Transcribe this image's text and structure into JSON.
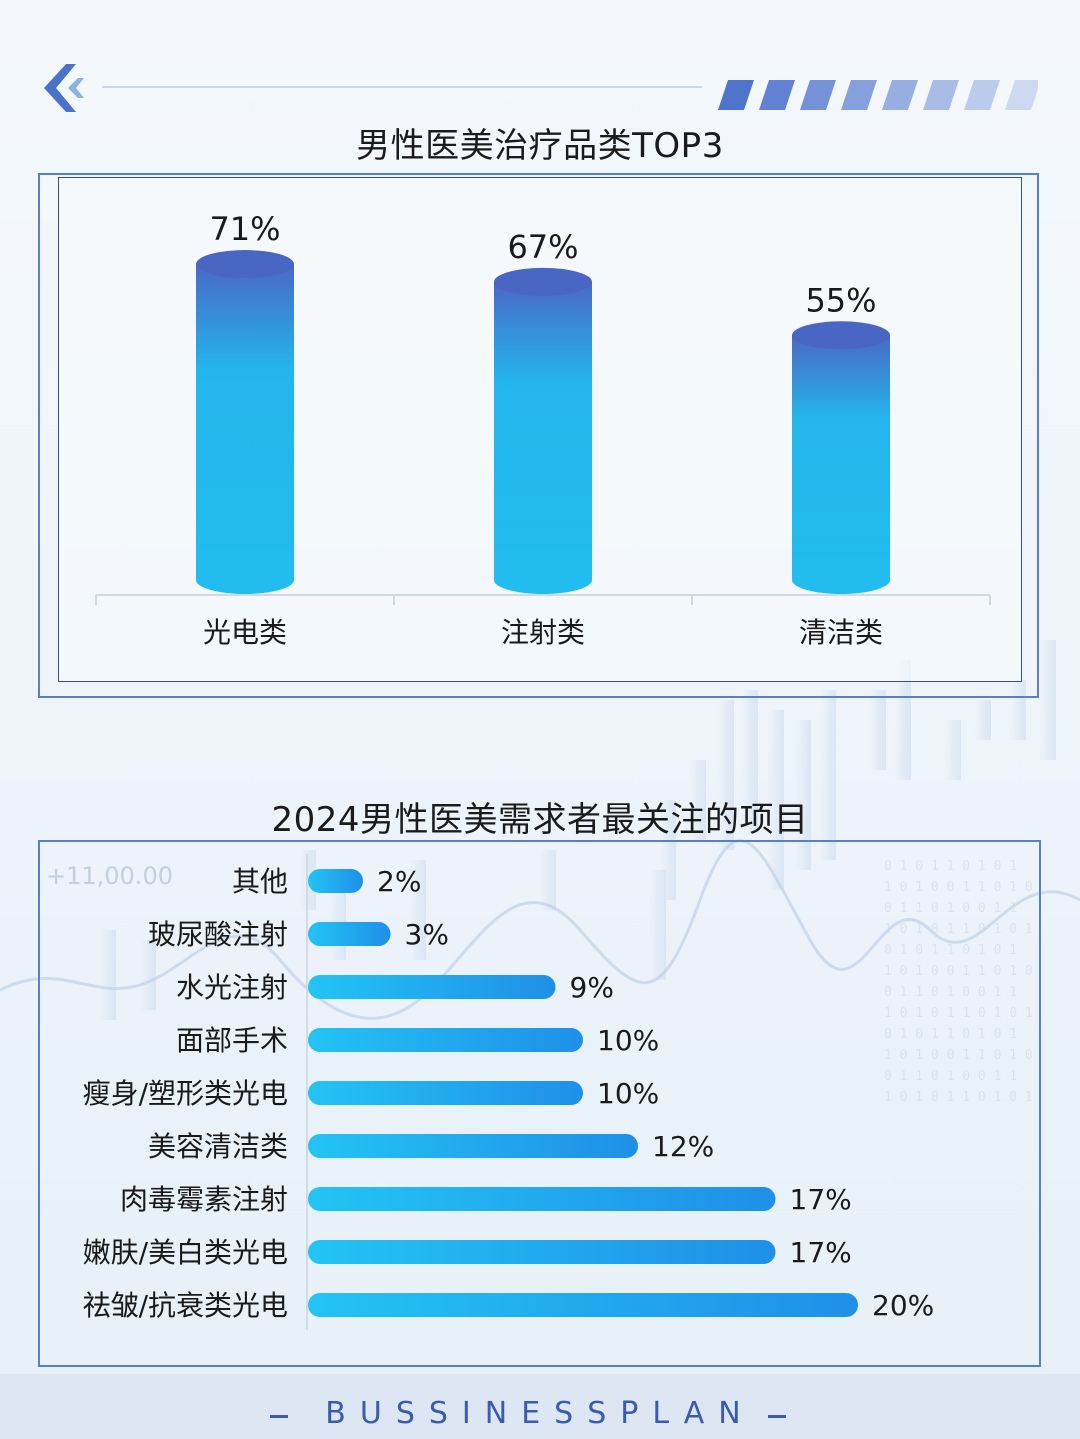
{
  "header": {
    "back_icon": "chevron-left-icon"
  },
  "colors": {
    "accent": "#3b6fcf",
    "bar_top": "#4a6cc8",
    "bar_main": "#24b7ec",
    "hbar_start": "#22c3f3",
    "hbar_end": "#1e8fe8",
    "frame": "#5a7fc9"
  },
  "chart_data": [
    {
      "type": "bar",
      "title": "男性医美治疗品类TOP3",
      "categories": [
        "光电类",
        "注射类",
        "清洁类"
      ],
      "values": [
        71,
        67,
        55
      ],
      "value_labels": [
        "71%",
        "67%",
        "55%"
      ],
      "unit": "%",
      "ylim": [
        0,
        100
      ],
      "grid": false,
      "legend": "none"
    },
    {
      "type": "bar",
      "orientation": "horizontal",
      "title": "2024男性医美需求者最关注的项目",
      "categories": [
        "其他",
        "玻尿酸注射",
        "水光注射",
        "面部手术",
        "瘦身/塑形类光电",
        "美容清洁类",
        "肉毒霉素注射",
        "嫩肤/美白类光电",
        "祛皱/抗衰类光电"
      ],
      "values": [
        2,
        3,
        9,
        10,
        10,
        12,
        17,
        17,
        20
      ],
      "value_labels": [
        "2%",
        "3%",
        "9%",
        "10%",
        "10%",
        "12%",
        "17%",
        "17%",
        "20%"
      ],
      "unit": "%",
      "grid": false,
      "legend": "none"
    }
  ],
  "background": {
    "ticker_text": "+11,00.00"
  },
  "footer": {
    "text": "BUSSINESSPLAN"
  }
}
